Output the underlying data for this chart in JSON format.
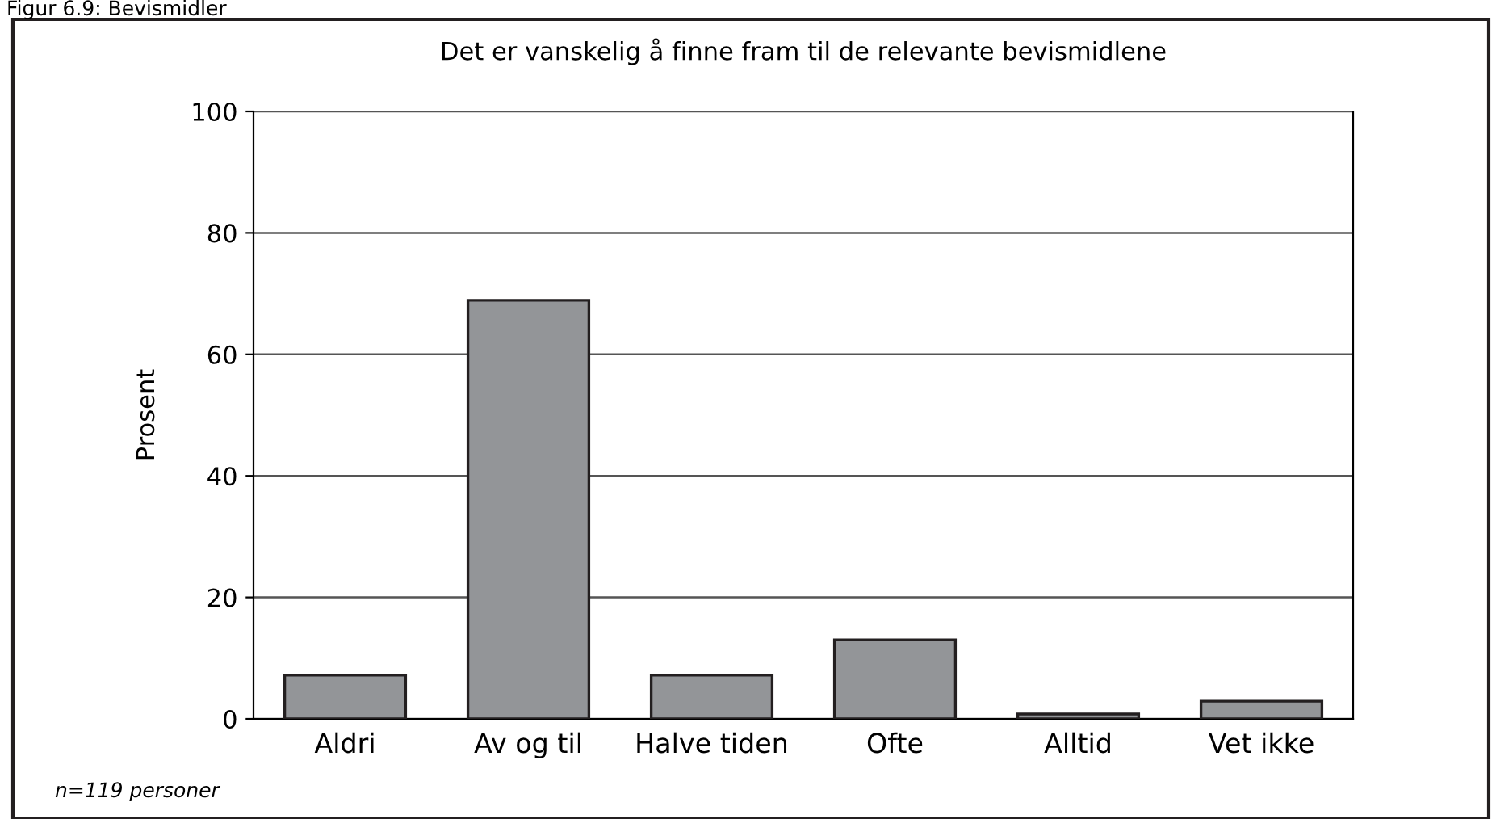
{
  "chart_data": {
    "type": "bar",
    "title": "Det er vanskelig å finne fram til de relevante bevismidlene",
    "ylabel": "Prosent",
    "categories": [
      "Aldri",
      "Av og til",
      "Halve tiden",
      "Ofte",
      "Alltid",
      "Vet ikke"
    ],
    "values": [
      7.2,
      68.9,
      7.2,
      13.0,
      0.8,
      2.9
    ],
    "color": "#939598",
    "ylim": [
      0,
      100
    ],
    "yticks": [
      0,
      20,
      40,
      60,
      80,
      100
    ],
    "grid": "y",
    "annotations": [
      "Figur 6.9: Bevismidler",
      "n=119 personer"
    ]
  }
}
